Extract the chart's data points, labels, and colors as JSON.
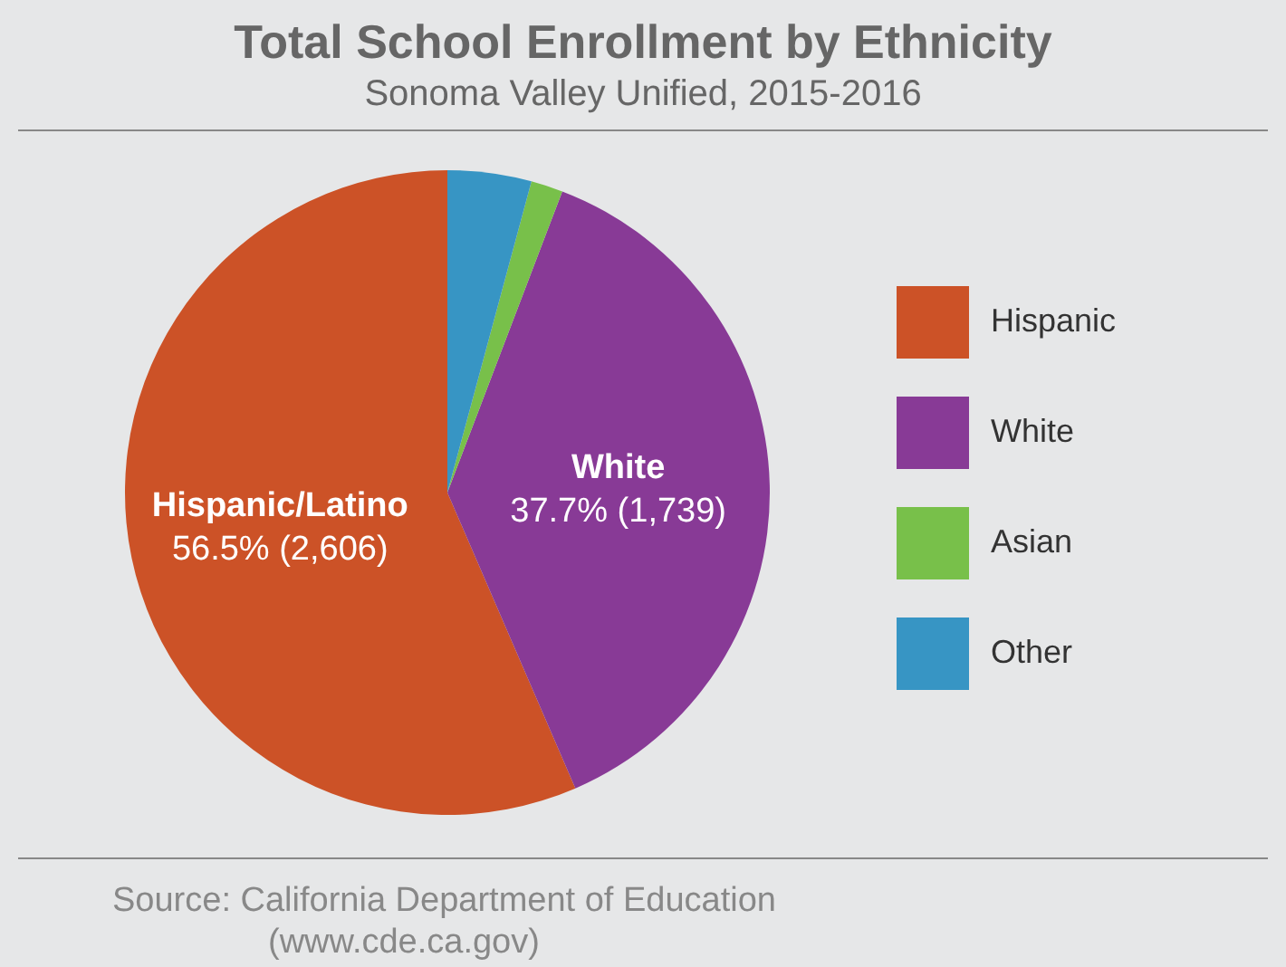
{
  "chart_data": {
    "type": "pie",
    "title": "Total School Enrollment by Ethnicity",
    "subtitle": "Sonoma Valley Unified, 2015-2016",
    "categories": [
      "Hispanic",
      "White",
      "Asian",
      "Other"
    ],
    "values": [
      56.5,
      37.7,
      1.6,
      4.2
    ],
    "colors": [
      "#cc5227",
      "#883a96",
      "#78c04a",
      "#3795c4"
    ],
    "value_labels": [
      "Hispanic/Latino\n56.5% (2,606)",
      "White\n37.7% (1,739)",
      null,
      null
    ],
    "legend": "right",
    "annotations": [
      "Source: California Department of Education",
      "(www.cde.ca.gov)"
    ]
  }
}
